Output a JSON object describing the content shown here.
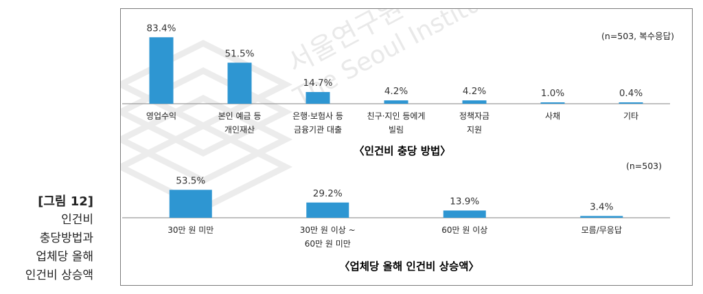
{
  "caption": {
    "figure_no": "[그림 12]",
    "lines": [
      "인건비",
      "충당방법과",
      "업체당 올해",
      "인건비 상승액"
    ]
  },
  "watermark": {
    "korean": "서울연구원",
    "english": "The Seoul Institute"
  },
  "colors": {
    "bar": "#2e96d2",
    "axis": "#9a9a9a",
    "frame": "#7a7a7a"
  },
  "chart_data": [
    {
      "type": "bar",
      "title": "〈인건비 충당 방법〉",
      "note": "(n=503, 복수응답)",
      "categories": [
        "영업수익",
        "본인 예금 등\n개인재산",
        "은행·보험사 등\n금융기관 대출",
        "친구·지인 등에게\n빌림",
        "정책자금\n지원",
        "사채",
        "기타"
      ],
      "values": [
        83.4,
        51.5,
        14.7,
        4.2,
        4.2,
        1.0,
        0.4
      ],
      "value_labels": [
        "83.4%",
        "51.5%",
        "14.7%",
        "4.2%",
        "4.2%",
        "1.0%",
        "0.4%"
      ],
      "unit": "%",
      "ylim": [
        0,
        100
      ],
      "grid": false,
      "legend": "none"
    },
    {
      "type": "bar",
      "title": "〈업체당 올해 인건비 상승액〉",
      "note": "(n=503)",
      "categories": [
        "30만 원 미만",
        "30만 원 이상 ~\n60만 원 미만",
        "60만 원 이상",
        "모름/무응답"
      ],
      "values": [
        53.5,
        29.2,
        13.9,
        3.4
      ],
      "value_labels": [
        "53.5%",
        "29.2%",
        "13.9%",
        "3.4%"
      ],
      "unit": "%",
      "ylim": [
        0,
        100
      ],
      "grid": false,
      "legend": "none"
    }
  ]
}
